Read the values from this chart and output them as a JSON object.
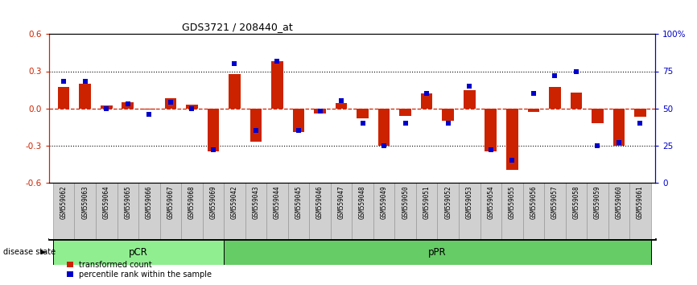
{
  "title": "GDS3721 / 208440_at",
  "samples": [
    "GSM559062",
    "GSM559063",
    "GSM559064",
    "GSM559065",
    "GSM559066",
    "GSM559067",
    "GSM559068",
    "GSM559069",
    "GSM559042",
    "GSM559043",
    "GSM559044",
    "GSM559045",
    "GSM559046",
    "GSM559047",
    "GSM559048",
    "GSM559049",
    "GSM559050",
    "GSM559051",
    "GSM559052",
    "GSM559053",
    "GSM559054",
    "GSM559055",
    "GSM559056",
    "GSM559057",
    "GSM559058",
    "GSM559059",
    "GSM559060",
    "GSM559061"
  ],
  "transformed_count": [
    0.17,
    0.2,
    0.02,
    0.05,
    -0.01,
    0.08,
    0.03,
    -0.35,
    0.28,
    -0.27,
    0.38,
    -0.19,
    -0.04,
    0.04,
    -0.08,
    -0.3,
    -0.06,
    0.12,
    -0.1,
    0.15,
    -0.35,
    -0.5,
    -0.03,
    0.17,
    0.13,
    -0.12,
    -0.3,
    -0.07
  ],
  "percentile_rank": [
    68,
    68,
    50,
    53,
    46,
    54,
    50,
    22,
    80,
    35,
    82,
    35,
    48,
    55,
    40,
    25,
    40,
    60,
    40,
    65,
    22,
    15,
    60,
    72,
    75,
    25,
    27,
    40
  ],
  "groups": [
    {
      "name": "pCR",
      "start": 0,
      "end": 8,
      "color": "#90EE90"
    },
    {
      "name": "pPR",
      "start": 8,
      "end": 28,
      "color": "#66CC66"
    }
  ],
  "ylim": [
    -0.6,
    0.6
  ],
  "yticks": [
    -0.6,
    -0.3,
    0.0,
    0.3,
    0.6
  ],
  "right_yticks": [
    0,
    25,
    50,
    75,
    100
  ],
  "bar_color": "#CC2200",
  "dot_color": "#0000CC",
  "legend_items": [
    "transformed count",
    "percentile rank within the sample"
  ],
  "disease_state_label": "disease state"
}
